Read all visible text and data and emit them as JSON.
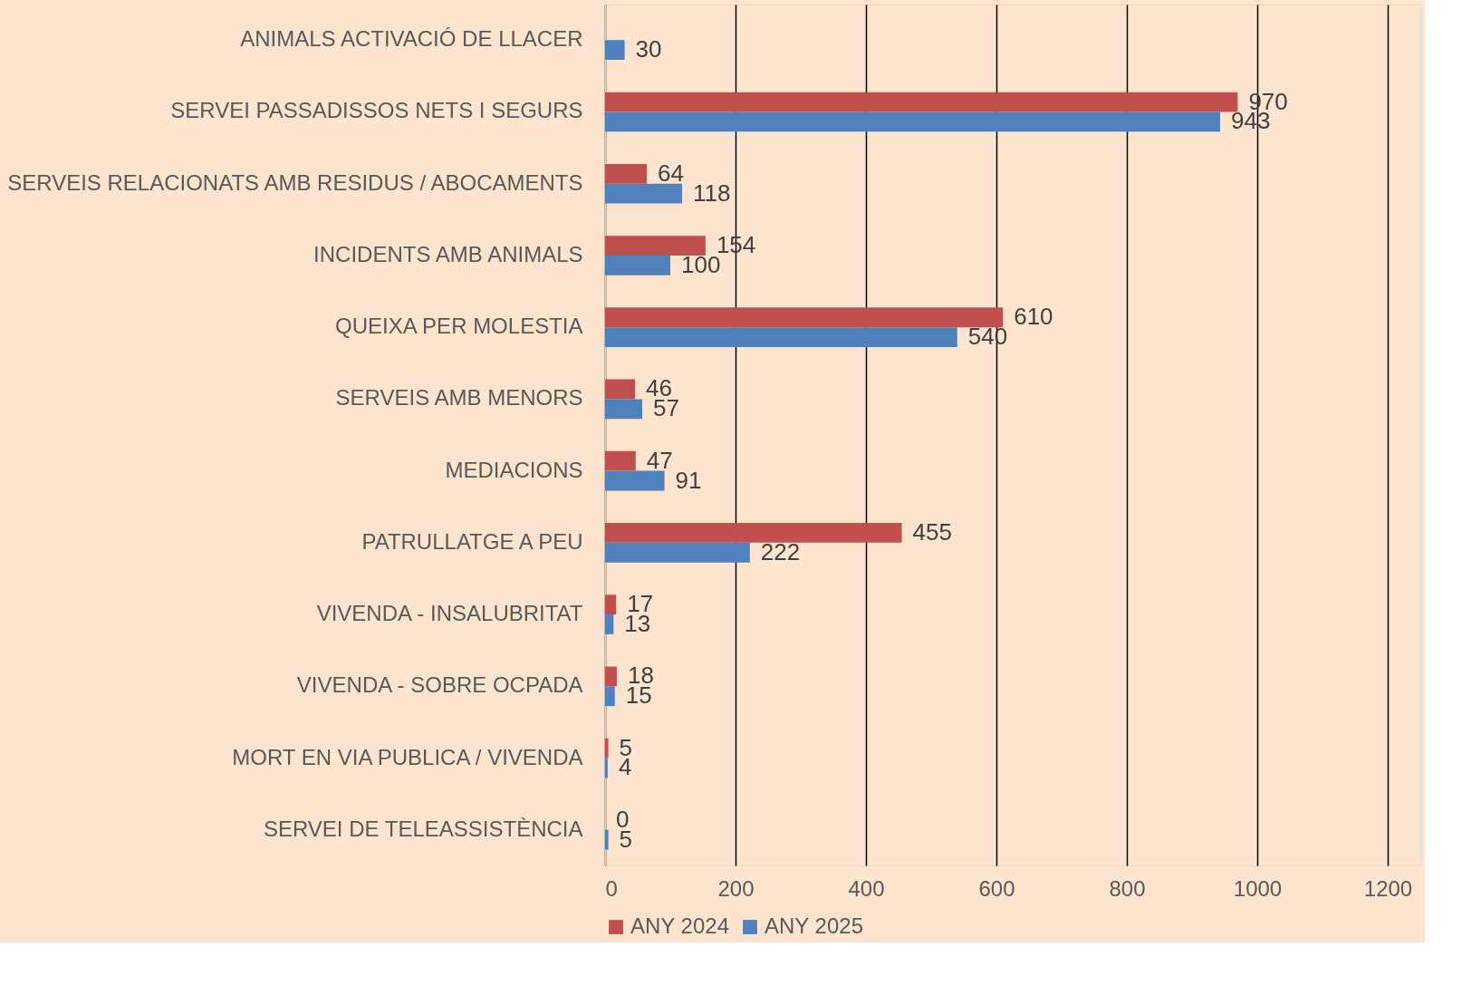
{
  "chart_data": {
    "type": "bar",
    "orientation": "horizontal",
    "categories": [
      "ANIMALS ACTIVACIÓ DE LLACER",
      "SERVEI PASSADISSOS NETS I SEGURS",
      "SERVEIS RELACIONATS AMB RESIDUS / ABOCAMENTS",
      "INCIDENTS AMB ANIMALS",
      "QUEIXA PER MOLESTIA",
      "SERVEIS AMB MENORS",
      "MEDIACIONS",
      "PATRULLATGE A PEU",
      "VIVENDA  - INSALUBRITAT",
      "VIVENDA - SOBRE OCPADA",
      "MORT EN VIA PUBLICA / VIVENDA",
      "SERVEI DE TELEASSISTÈNCIA"
    ],
    "series": [
      {
        "name": "ANY 2024",
        "color": "#c0504d",
        "values": [
          null,
          970,
          64,
          154,
          610,
          46,
          47,
          455,
          17,
          18,
          5,
          0
        ]
      },
      {
        "name": "ANY 2025",
        "color": "#4f81bd",
        "values": [
          30,
          943,
          118,
          100,
          540,
          57,
          91,
          222,
          13,
          15,
          4,
          5
        ]
      }
    ],
    "xlim": [
      0,
      1250
    ],
    "xticks": [
      0,
      200,
      400,
      600,
      800,
      1000,
      1200
    ],
    "grid": "x",
    "legend": "bottom",
    "data_labels": true
  }
}
